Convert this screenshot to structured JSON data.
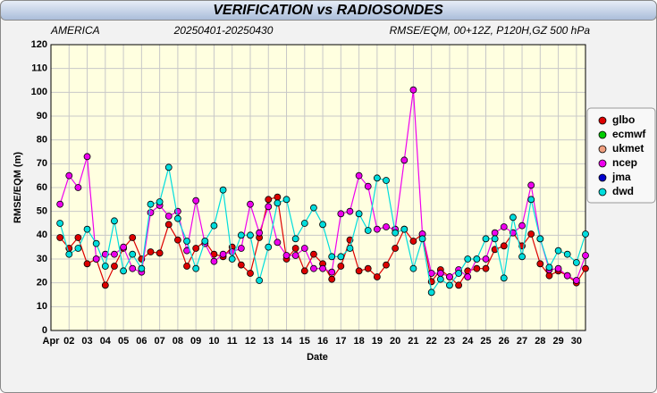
{
  "chart_data": {
    "type": "line",
    "title": "VERIFICATION vs RADIOSONDES",
    "subtitles": [
      "AMERICA",
      "20250401-20250430",
      "RMSE/EQM, 00+12Z, P120H,GZ 500 hPa"
    ],
    "xlabel": "Date",
    "ylabel": "RMSE/EQM (m)",
    "x": [
      1.5,
      2,
      2.5,
      3,
      3.5,
      4,
      4.5,
      5,
      5.5,
      6,
      6.5,
      7,
      7.5,
      8,
      8.5,
      9,
      9.5,
      10,
      10.5,
      11,
      11.5,
      12,
      12.5,
      13,
      13.5,
      14,
      14.5,
      15,
      15.5,
      16,
      16.5,
      17,
      17.5,
      18,
      18.5,
      19,
      19.5,
      20,
      20.5,
      21,
      21.5,
      22,
      22.5,
      23,
      23.5,
      24,
      24.5,
      25,
      25.5,
      26,
      26.5,
      27,
      27.5,
      28,
      28.5,
      29,
      29.5,
      30,
      30.5
    ],
    "xlim": [
      1,
      30.5
    ],
    "xticks": [
      {
        "value": 1,
        "label": "Apr"
      },
      {
        "value": 2,
        "label": "02"
      },
      {
        "value": 3,
        "label": "03"
      },
      {
        "value": 4,
        "label": "04"
      },
      {
        "value": 5,
        "label": "05"
      },
      {
        "value": 6,
        "label": "06"
      },
      {
        "value": 7,
        "label": "07"
      },
      {
        "value": 8,
        "label": "08"
      },
      {
        "value": 9,
        "label": "09"
      },
      10,
      11,
      12,
      13,
      14,
      15,
      16,
      17,
      18,
      19,
      20,
      21,
      22,
      23,
      24,
      25,
      26,
      27,
      28,
      29,
      30
    ],
    "ylim": [
      0,
      120
    ],
    "yticks": [
      0,
      10,
      20,
      30,
      40,
      50,
      60,
      70,
      80,
      90,
      100,
      110,
      120
    ],
    "grid": true,
    "legend": "right",
    "series": [
      {
        "name": "glbo",
        "color": "#dd0000",
        "values": [
          39,
          34.5,
          39,
          28,
          30,
          19,
          27,
          34.5,
          39,
          30,
          33,
          32.5,
          44.5,
          38,
          27,
          34.5,
          37.5,
          32,
          31,
          35,
          27.5,
          24,
          39,
          55,
          56,
          30,
          34.5,
          25,
          32,
          28,
          21.5,
          27,
          38,
          25,
          26,
          22.5,
          27.5,
          34.5,
          42.5,
          37.5,
          40.5,
          20.5,
          25.5,
          22.5,
          19,
          25,
          26,
          26,
          34,
          35.5,
          41,
          35.5,
          40.5,
          28,
          23,
          25,
          23,
          20,
          26
        ]
      },
      {
        "name": "ecmwf",
        "color": "#00cc00",
        "values": [
          null,
          null,
          null,
          null,
          null,
          null,
          null,
          null,
          null,
          null,
          null,
          null,
          null,
          null,
          null,
          null,
          null,
          null,
          null,
          null,
          null,
          null,
          null,
          null,
          null,
          null,
          null,
          null,
          null,
          null,
          null,
          null,
          null,
          null,
          null,
          null,
          null,
          null,
          null,
          null,
          null,
          null,
          null,
          null,
          null,
          null,
          null,
          null,
          null,
          null,
          null,
          null,
          null,
          null,
          null,
          null,
          null,
          null,
          null
        ]
      },
      {
        "name": "ukmet",
        "color": "#f0a080",
        "values": [
          null,
          null,
          null,
          null,
          null,
          null,
          null,
          null,
          null,
          null,
          null,
          null,
          null,
          null,
          null,
          null,
          null,
          null,
          null,
          null,
          null,
          null,
          null,
          null,
          null,
          null,
          null,
          null,
          null,
          null,
          null,
          null,
          null,
          null,
          null,
          null,
          null,
          null,
          null,
          null,
          null,
          null,
          null,
          null,
          null,
          null,
          null,
          null,
          null,
          null,
          null,
          null,
          null,
          null,
          null,
          null,
          null,
          null,
          null
        ]
      },
      {
        "name": "ncep",
        "color": "#ee00ee",
        "values": [
          53,
          65,
          60,
          73,
          30,
          32,
          32,
          35,
          26,
          24.5,
          49.5,
          52.5,
          48,
          50,
          33.5,
          54.5,
          36.5,
          29,
          32,
          33,
          34.5,
          53,
          41,
          52,
          37,
          31.5,
          31.5,
          34.5,
          26,
          26,
          24.5,
          49,
          50,
          65,
          60.5,
          42.5,
          43.5,
          42.5,
          71.5,
          101,
          40.5,
          24,
          24,
          22.5,
          25.5,
          22.5,
          30,
          30,
          41,
          43.5,
          41,
          44,
          61,
          38.5,
          25.5,
          26,
          23,
          21,
          31.5
        ]
      },
      {
        "name": "jma",
        "color": "#0000cc",
        "values": [
          null,
          null,
          null,
          null,
          null,
          null,
          null,
          null,
          null,
          null,
          null,
          null,
          null,
          null,
          null,
          null,
          null,
          null,
          null,
          null,
          null,
          null,
          null,
          null,
          null,
          null,
          null,
          null,
          null,
          null,
          null,
          null,
          null,
          null,
          null,
          null,
          null,
          null,
          null,
          null,
          null,
          null,
          null,
          null,
          null,
          null,
          null,
          null,
          null,
          null,
          null,
          null,
          null,
          null,
          null,
          null,
          null,
          null,
          null
        ]
      },
      {
        "name": "dwd",
        "color": "#00dddd",
        "values": [
          45,
          32,
          34.5,
          42.5,
          36.5,
          27,
          46,
          25,
          32,
          26,
          53,
          54,
          68.5,
          47,
          37.5,
          26,
          37.5,
          44,
          59,
          30,
          40,
          40,
          21,
          35,
          53.5,
          55,
          38.5,
          45,
          51.5,
          44.5,
          31,
          31,
          34.5,
          49,
          42,
          64,
          63,
          41,
          42.5,
          26,
          38.5,
          16,
          21.5,
          19,
          24,
          30,
          30,
          38.5,
          38.5,
          22,
          47.5,
          31,
          55,
          38.5,
          26.5,
          33.5,
          32,
          28.5,
          40.5
        ]
      }
    ]
  }
}
